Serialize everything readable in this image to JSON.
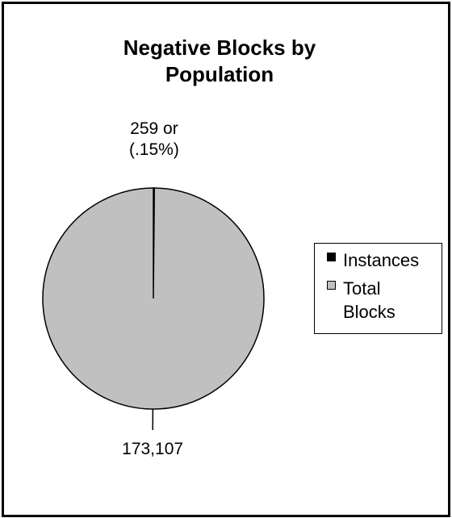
{
  "chart_data": {
    "type": "pie",
    "title": "Negative Blocks by Population",
    "categories": [
      "Instances",
      "Total Blocks"
    ],
    "values": [
      259,
      173107
    ],
    "value_labels": [
      "259 or (.15%)",
      "173,107"
    ],
    "colors": [
      "#000000",
      "#c0c0c0"
    ],
    "legend": "right"
  }
}
